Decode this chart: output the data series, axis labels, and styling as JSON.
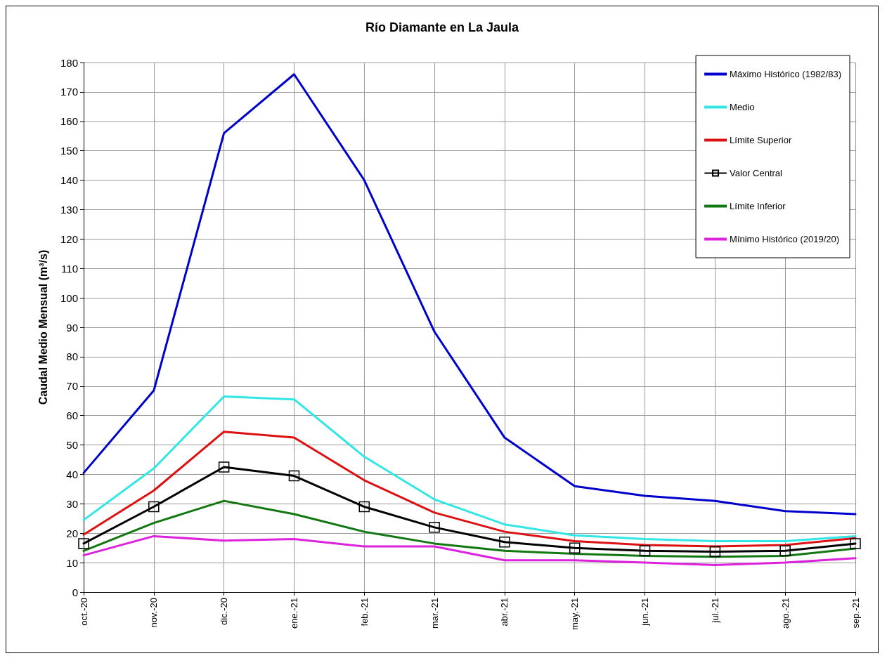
{
  "chart_data": {
    "type": "line",
    "title": "Río Diamante en La Jaula",
    "ylabel": "Caudal Medio Mensual (m³/s)",
    "categories": [
      "oct.-20",
      "nov.-20",
      "dic.-20",
      "ene.-21",
      "feb.-21",
      "mar.-21",
      "abr.-21",
      "may.-21",
      "jun.-21",
      "jul.-21",
      "ago.-21",
      "sep.-21"
    ],
    "ylim": [
      0,
      180
    ],
    "yticks": [
      0,
      10,
      20,
      30,
      40,
      50,
      60,
      70,
      80,
      90,
      100,
      110,
      120,
      130,
      140,
      150,
      160,
      170,
      180
    ],
    "grid": true,
    "legend": "top right",
    "marker": "none",
    "line_style": "solid",
    "series": [
      {
        "name": "Máximo Histórico (1982/83)",
        "color": "#0000cc",
        "values": [
          40.5,
          68.5,
          156,
          176,
          140,
          88.5,
          52.5,
          36,
          32.7,
          31,
          27.5,
          26.5
        ]
      },
      {
        "name": "Medio",
        "color": "#33e6e6",
        "values": [
          24.5,
          42,
          66.5,
          65.5,
          46,
          31.5,
          23,
          19.3,
          18,
          17.3,
          17.3,
          19
        ]
      },
      {
        "name": "Límite Superior",
        "color": "#dd1111",
        "values": [
          19.5,
          34.5,
          54.5,
          52.5,
          38,
          27,
          20.5,
          17.3,
          16,
          15.5,
          16,
          18.3
        ]
      },
      {
        "name": "Valor Central",
        "color": "#000000",
        "marker": "square",
        "values": [
          16.5,
          29,
          42.5,
          39.5,
          29,
          22,
          17,
          15,
          14,
          13.7,
          14,
          16.5
        ]
      },
      {
        "name": "Límite Inferior",
        "color": "#117711",
        "values": [
          14,
          23.5,
          31,
          26.5,
          20.5,
          16.5,
          14,
          13,
          12.3,
          12,
          12.3,
          14.8
        ]
      },
      {
        "name": "Mínimo Histórico (2019/20)",
        "color": "#dd22dd",
        "values": [
          12.5,
          19,
          17.5,
          18,
          15.5,
          15.5,
          10.8,
          10.8,
          10,
          9.2,
          10,
          11.5
        ]
      }
    ]
  }
}
